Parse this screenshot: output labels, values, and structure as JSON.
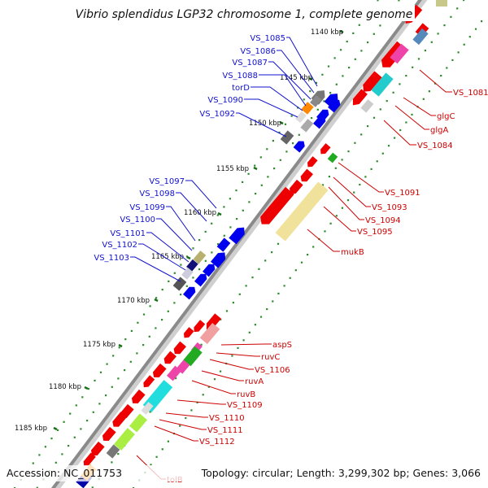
{
  "title": "Vibrio splendidus LGP32 chromosome 1, complete genome",
  "footer": {
    "accession": "Accession: NC_011753",
    "summary": "Topology: circular; Length: 3,299,302 bp; Genes: 3,066"
  },
  "ticks": [
    "1140 kbp",
    "1145 kbp",
    "1150 kbp",
    "1155 kbp",
    "1160 kbp",
    "1165 kbp",
    "1170 kbp",
    "1175 kbp",
    "1180 kbp",
    "1185 kbp"
  ],
  "left_labels": [
    "VS_1085",
    "VS_1086",
    "VS_1087",
    "VS_1088",
    "torD",
    "VS_1090",
    "VS_1092",
    "VS_1097",
    "VS_1098",
    "VS_1099",
    "VS_1100",
    "VS_1101",
    "VS_1102",
    "VS_1103"
  ],
  "right_labels": [
    "VS_1081",
    "glgC",
    "glgA",
    "VS_1084",
    "VS_1091",
    "VS_1093",
    "VS_1094",
    "VS_1095",
    "mukB",
    "aspS",
    "ruvC",
    "VS_1106",
    "ruvA",
    "ruvB",
    "VS_1109",
    "VS_1110",
    "VS_1111",
    "VS_1112",
    "tolB"
  ],
  "colors": {
    "backbone": "#8a8a8a",
    "dots": "#2e8b2e",
    "forward_genes": "#0000ee",
    "reverse_genes": "#ee0000",
    "label_left": "#1111cc",
    "label_right": "#cc0000"
  }
}
